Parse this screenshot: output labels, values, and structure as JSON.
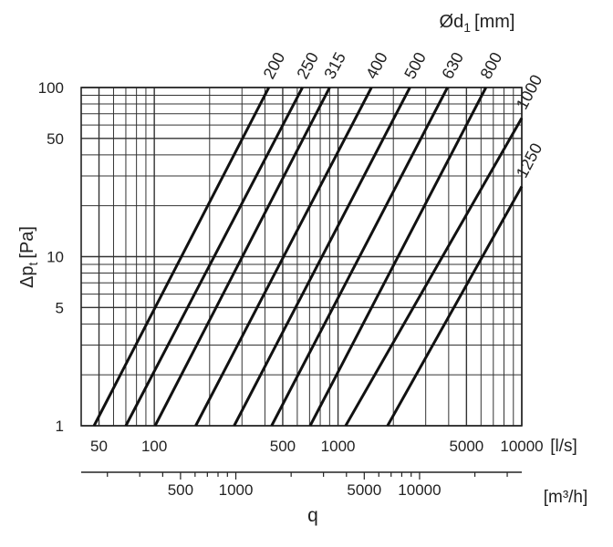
{
  "chart_data": {
    "type": "line",
    "x_scale": "log",
    "y_scale": "log",
    "xlim": [
      40,
      10000
    ],
    "ylim": [
      1,
      100
    ],
    "x_unit": "[l/s]",
    "x2_unit": "[m³/h]",
    "xlabel": "q",
    "ylabel": "Δp",
    "ylabel_sub": "t",
    "ylabel_unit": "[Pa]",
    "legend_title": "Ød",
    "legend_title_sub": "1",
    "legend_title_unit": "[mm]",
    "x_tick_labels": [
      {
        "value": 50,
        "label": "50"
      },
      {
        "value": 100,
        "label": "100"
      },
      {
        "value": 500,
        "label": "500"
      },
      {
        "value": 1000,
        "label": "1000"
      },
      {
        "value": 5000,
        "label": "5000"
      },
      {
        "value": 10000,
        "label": "10000"
      }
    ],
    "x2_tick_labels": [
      {
        "value": 500,
        "label": "500"
      },
      {
        "value": 1000,
        "label": "1000"
      },
      {
        "value": 5000,
        "label": "5000"
      },
      {
        "value": 10000,
        "label": "10000"
      }
    ],
    "y_tick_labels": [
      {
        "value": 1,
        "label": "1"
      },
      {
        "value": 5,
        "label": "5"
      },
      {
        "value": 10,
        "label": "10"
      },
      {
        "value": 50,
        "label": "50"
      },
      {
        "value": 100,
        "label": "100"
      }
    ],
    "series": [
      {
        "name": "200",
        "points": [
          [
            47,
            1
          ],
          [
            420,
            100
          ]
        ]
      },
      {
        "name": "250",
        "points": [
          [
            70,
            1
          ],
          [
            640,
            100
          ]
        ]
      },
      {
        "name": "315",
        "points": [
          [
            101,
            1
          ],
          [
            900,
            100
          ]
        ]
      },
      {
        "name": "400",
        "points": [
          [
            168,
            1
          ],
          [
            1520,
            100
          ]
        ]
      },
      {
        "name": "500",
        "points": [
          [
            272,
            1
          ],
          [
            2460,
            100
          ]
        ]
      },
      {
        "name": "630",
        "points": [
          [
            435,
            1
          ],
          [
            3940,
            100
          ]
        ]
      },
      {
        "name": "800",
        "points": [
          [
            705,
            1
          ],
          [
            6380,
            100
          ]
        ]
      },
      {
        "name": "1000",
        "points": [
          [
            1100,
            1
          ],
          [
            10000,
            66
          ]
        ]
      },
      {
        "name": "1250",
        "points": [
          [
            1860,
            1
          ],
          [
            10000,
            26
          ]
        ]
      }
    ],
    "grid": true
  }
}
